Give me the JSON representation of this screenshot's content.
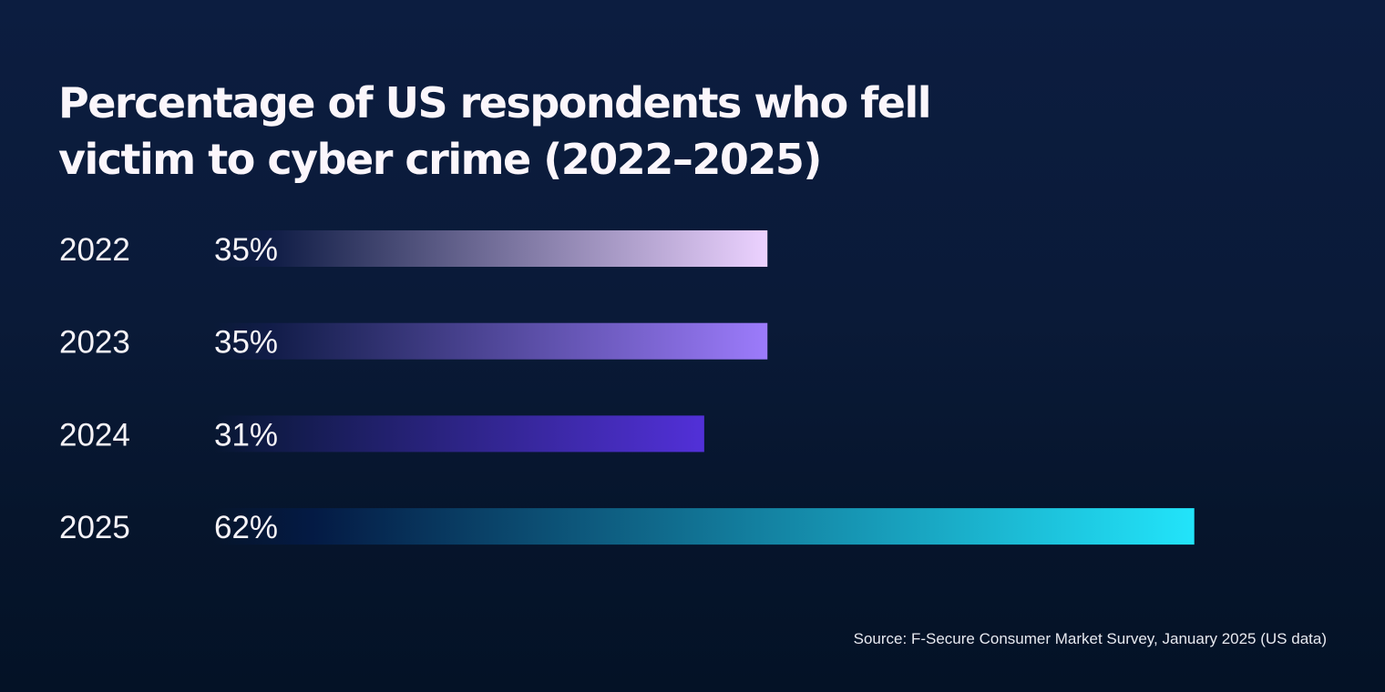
{
  "chart_data": {
    "type": "bar",
    "orientation": "horizontal",
    "title": "Percentage of US respondents who fell victim to cyber crime (2022–2025)",
    "title_lines": [
      "Percentage of US respondents who fell",
      "victim to cyber crime (2022–2025)"
    ],
    "categories": [
      "2022",
      "2023",
      "2024",
      "2025"
    ],
    "values": [
      35,
      35,
      31,
      62
    ],
    "value_labels": [
      "35%",
      "35%",
      "31%",
      "62%"
    ],
    "unit": "%",
    "xlabel": "",
    "ylabel": "",
    "xlim": [
      0,
      100
    ],
    "grid": false,
    "legend": "none",
    "bar_gradients": [
      {
        "from": "#0f1c45",
        "to": "#ecd2ff"
      },
      {
        "from": "#111c48",
        "to": "#9c7bfb"
      },
      {
        "from": "#0f1a44",
        "to": "#5230d8"
      },
      {
        "from": "#041a44",
        "to": "#22e4fa"
      }
    ],
    "source": "Source: F-Secure Consumer Market Survey, January 2025 (US data)"
  }
}
